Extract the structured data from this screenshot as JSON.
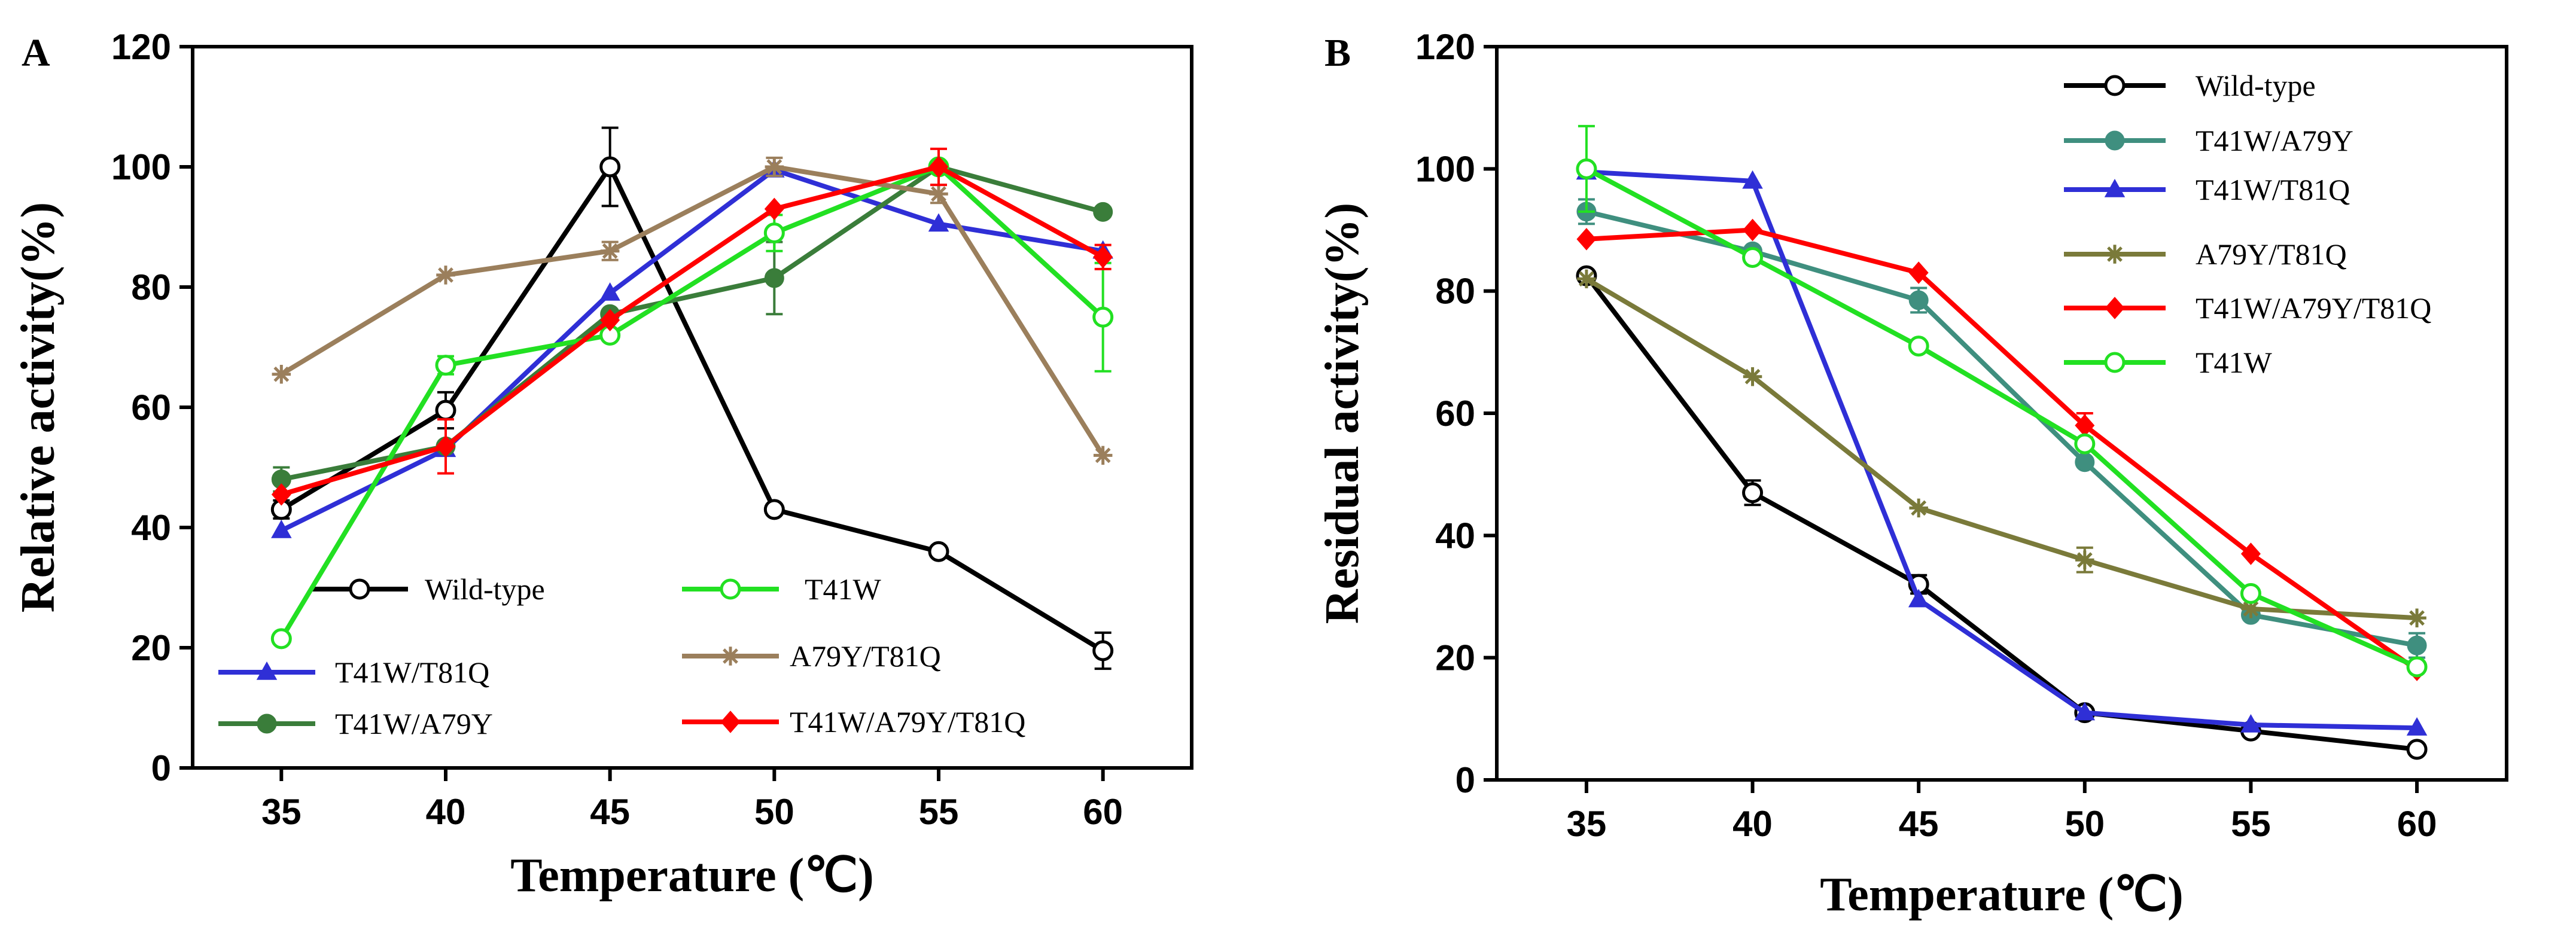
{
  "chart_data": [
    {
      "panel_label": "A",
      "type": "line",
      "xlabel": "Temperature (℃)",
      "ylabel": "Relative activity(%)",
      "x": [
        35,
        40,
        45,
        50,
        55,
        60
      ],
      "x_ticks": [
        "35",
        "40",
        "45",
        "50",
        "55",
        "60"
      ],
      "y_ticks": [
        "0",
        "20",
        "40",
        "60",
        "80",
        "100",
        "120"
      ],
      "xlim": [
        32.3,
        62.7
      ],
      "ylim": [
        0,
        120
      ],
      "grid": false,
      "legend": "inside bottom (two columns)",
      "series": [
        {
          "name": "Wild-type",
          "color": "#000000",
          "marker": "open-circle",
          "values": [
            43,
            59.5,
            100,
            43,
            36,
            19.5
          ],
          "errors": [
            1.5,
            3,
            6.5,
            0,
            0,
            3
          ]
        },
        {
          "name": "T41W/T81Q",
          "color": "#2f2fd6",
          "marker": "triangle",
          "values": [
            39.5,
            53,
            79,
            99.5,
            90.5,
            86
          ],
          "errors": [
            0,
            0,
            0,
            0,
            0,
            0
          ]
        },
        {
          "name": "T41W/A79Y",
          "color": "#3a7d3a",
          "marker": "filled-circle",
          "values": [
            48,
            53.5,
            75.5,
            81.5,
            100,
            92.5
          ],
          "errors": [
            2,
            0,
            0,
            6,
            0,
            0
          ]
        },
        {
          "name": "T41W",
          "color": "#22e022",
          "marker": "open-circle",
          "values": [
            21.5,
            67,
            72,
            89,
            100,
            75
          ],
          "errors": [
            0,
            1.5,
            0,
            3,
            0,
            9
          ]
        },
        {
          "name": "A79Y/T81Q",
          "color": "#9b7f5c",
          "marker": "star",
          "values": [
            65.5,
            82,
            86,
            100,
            95.5,
            52
          ],
          "errors": [
            0,
            0,
            1.5,
            1.5,
            1.5,
            0
          ]
        },
        {
          "name": "T41W/A79Y/T81Q",
          "color": "#ff0000",
          "marker": "diamond",
          "values": [
            45.5,
            53.5,
            74.5,
            93,
            100,
            85
          ],
          "errors": [
            0,
            4.5,
            0,
            0,
            3,
            2
          ]
        }
      ]
    },
    {
      "panel_label": "B",
      "type": "line",
      "xlabel": "Temperature (℃)",
      "ylabel": "Residual activity(%)",
      "x": [
        35,
        40,
        45,
        50,
        55,
        60
      ],
      "x_ticks": [
        "35",
        "40",
        "45",
        "50",
        "55",
        "60"
      ],
      "y_ticks": [
        "0",
        "20",
        "40",
        "60",
        "80",
        "100",
        "120"
      ],
      "xlim": [
        32.3,
        62.7
      ],
      "ylim": [
        0,
        120
      ],
      "grid": false,
      "legend": "top-right",
      "series": [
        {
          "name": "Wild-type",
          "color": "#000000",
          "marker": "open-circle",
          "values": [
            82.5,
            47,
            32,
            11,
            8,
            5
          ],
          "errors": [
            0,
            2,
            1.5,
            0,
            0,
            0
          ]
        },
        {
          "name": "T41W/A79Y",
          "color": "#3f8f7f",
          "marker": "filled-circle",
          "values": [
            93,
            86.5,
            78.5,
            52,
            27,
            22
          ],
          "errors": [
            2,
            0,
            2,
            0,
            0,
            2
          ]
        },
        {
          "name": "T41W/T81Q",
          "color": "#2f2fd6",
          "marker": "triangle",
          "values": [
            99.5,
            98,
            29.5,
            11,
            9,
            8.5
          ],
          "errors": [
            0,
            0,
            0,
            0,
            0,
            0
          ]
        },
        {
          "name": "A79Y/T81Q",
          "color": "#7a7a3a",
          "marker": "star",
          "values": [
            82,
            66,
            44.5,
            36,
            28,
            26.5
          ],
          "errors": [
            0,
            0,
            0,
            2,
            0,
            0
          ]
        },
        {
          "name": "T41W/A79Y/T81Q",
          "color": "#ff0000",
          "marker": "diamond",
          "values": [
            88.5,
            90,
            83,
            58,
            37,
            18
          ],
          "errors": [
            0,
            0,
            0,
            2,
            0,
            0
          ]
        },
        {
          "name": "T41W",
          "color": "#22e022",
          "marker": "open-circle",
          "values": [
            100,
            85.5,
            71,
            55,
            30.5,
            18.5
          ],
          "errors": [
            7,
            0,
            0,
            0,
            0,
            0
          ]
        }
      ]
    }
  ]
}
